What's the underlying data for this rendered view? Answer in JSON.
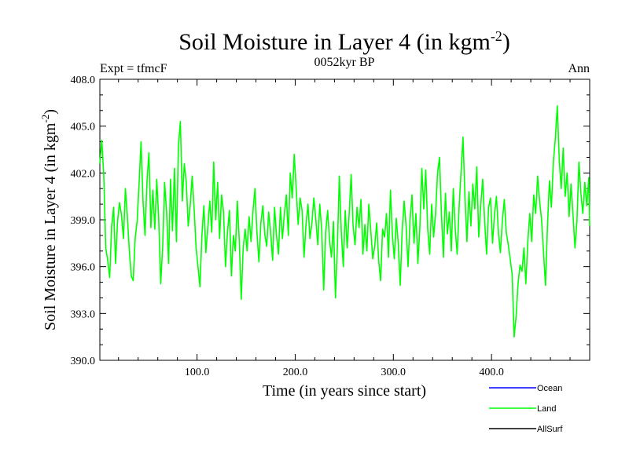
{
  "chart_data": {
    "type": "line",
    "title_main": "Soil Moisture in Layer 4 (in kgm",
    "title_sup": "-2",
    "title_close": ")",
    "subtitle": "0052kyr BP",
    "left_label": "Expt = tfmcF",
    "right_label": "Ann",
    "xlabel": "Time (in years since start)",
    "ylabel_main": "Soil Moisture in Layer 4 (in kgm",
    "ylabel_sup": "-2",
    "ylabel_close": ")",
    "xlim": [
      1,
      500
    ],
    "ylim": [
      390.0,
      408.0
    ],
    "x_ticks": [
      {
        "value": 100,
        "label": "100.0"
      },
      {
        "value": 200,
        "label": "200.0"
      },
      {
        "value": 300,
        "label": "300.0"
      },
      {
        "value": 400,
        "label": "400.0"
      }
    ],
    "y_ticks": [
      {
        "value": 390,
        "label": "390.0"
      },
      {
        "value": 393,
        "label": "393.0"
      },
      {
        "value": 396,
        "label": "396.0"
      },
      {
        "value": 399,
        "label": "399.0"
      },
      {
        "value": 402,
        "label": "402.0"
      },
      {
        "value": 405,
        "label": "405.0"
      },
      {
        "value": 408,
        "label": "408.0"
      }
    ],
    "legend": [
      {
        "name": "Ocean",
        "color": "#0000ff"
      },
      {
        "name": "Land",
        "color": "#00ff00"
      },
      {
        "name": "AllSurf",
        "color": "#000000"
      }
    ],
    "series": [
      {
        "name": "Land",
        "color": "#00ff00",
        "points": [
          [
            1,
            402.6
          ],
          [
            3,
            404.1
          ],
          [
            5,
            401.8
          ],
          [
            7,
            397.2
          ],
          [
            9,
            396.4
          ],
          [
            11,
            395.3
          ],
          [
            13,
            398.6
          ],
          [
            15,
            399.8
          ],
          [
            17,
            396.2
          ],
          [
            19,
            398.9
          ],
          [
            21,
            400.1
          ],
          [
            23,
            399.3
          ],
          [
            25,
            397.8
          ],
          [
            27,
            401.0
          ],
          [
            29,
            399.2
          ],
          [
            31,
            397.0
          ],
          [
            33,
            395.4
          ],
          [
            35,
            395.1
          ],
          [
            37,
            397.8
          ],
          [
            39,
            398.9
          ],
          [
            41,
            401.3
          ],
          [
            43,
            404.0
          ],
          [
            45,
            400.2
          ],
          [
            47,
            398.0
          ],
          [
            49,
            401.4
          ],
          [
            51,
            403.3
          ],
          [
            53,
            398.5
          ],
          [
            55,
            400.9
          ],
          [
            57,
            398.4
          ],
          [
            59,
            401.6
          ],
          [
            61,
            399.0
          ],
          [
            63,
            394.9
          ],
          [
            65,
            397.3
          ],
          [
            67,
            401.4
          ],
          [
            69,
            399.5
          ],
          [
            71,
            396.2
          ],
          [
            73,
            401.6
          ],
          [
            75,
            398.3
          ],
          [
            77,
            402.3
          ],
          [
            79,
            397.6
          ],
          [
            81,
            403.7
          ],
          [
            83,
            405.3
          ],
          [
            85,
            400.2
          ],
          [
            87,
            402.6
          ],
          [
            89,
            401.4
          ],
          [
            91,
            398.6
          ],
          [
            93,
            399.9
          ],
          [
            95,
            401.8
          ],
          [
            97,
            399.7
          ],
          [
            99,
            397.2
          ],
          [
            101,
            396.0
          ],
          [
            103,
            394.7
          ],
          [
            105,
            398.0
          ],
          [
            107,
            399.9
          ],
          [
            109,
            396.9
          ],
          [
            111,
            398.5
          ],
          [
            113,
            400.2
          ],
          [
            115,
            398.2
          ],
          [
            117,
            402.7
          ],
          [
            119,
            399.0
          ],
          [
            121,
            401.4
          ],
          [
            123,
            397.8
          ],
          [
            125,
            400.6
          ],
          [
            127,
            399.5
          ],
          [
            129,
            396.0
          ],
          [
            131,
            398.2
          ],
          [
            133,
            399.6
          ],
          [
            135,
            395.4
          ],
          [
            137,
            398.0
          ],
          [
            139,
            397.0
          ],
          [
            141,
            400.2
          ],
          [
            143,
            397.7
          ],
          [
            145,
            393.9
          ],
          [
            147,
            397.2
          ],
          [
            149,
            398.4
          ],
          [
            151,
            397.0
          ],
          [
            153,
            399.2
          ],
          [
            155,
            397.6
          ],
          [
            157,
            399.6
          ],
          [
            159,
            401.0
          ],
          [
            161,
            398.2
          ],
          [
            163,
            396.3
          ],
          [
            165,
            398.8
          ],
          [
            167,
            399.9
          ],
          [
            169,
            398.1
          ],
          [
            171,
            397.3
          ],
          [
            173,
            399.5
          ],
          [
            175,
            398.2
          ],
          [
            177,
            396.4
          ],
          [
            179,
            399.8
          ],
          [
            181,
            398.0
          ],
          [
            183,
            396.8
          ],
          [
            185,
            399.8
          ],
          [
            187,
            397.8
          ],
          [
            189,
            399.4
          ],
          [
            191,
            400.6
          ],
          [
            193,
            398.0
          ],
          [
            195,
            402.0
          ],
          [
            197,
            400.4
          ],
          [
            199,
            403.2
          ],
          [
            201,
            401.0
          ],
          [
            203,
            398.7
          ],
          [
            205,
            400.4
          ],
          [
            207,
            399.6
          ],
          [
            209,
            396.6
          ],
          [
            211,
            398.7
          ],
          [
            213,
            400.0
          ],
          [
            215,
            397.8
          ],
          [
            217,
            398.8
          ],
          [
            219,
            400.4
          ],
          [
            221,
            399.0
          ],
          [
            223,
            397.4
          ],
          [
            225,
            400.0
          ],
          [
            227,
            398.3
          ],
          [
            229,
            394.5
          ],
          [
            231,
            398.2
          ],
          [
            233,
            399.6
          ],
          [
            235,
            397.7
          ],
          [
            237,
            396.6
          ],
          [
            239,
            398.9
          ],
          [
            241,
            394.0
          ],
          [
            243,
            397.3
          ],
          [
            245,
            401.8
          ],
          [
            247,
            398.2
          ],
          [
            249,
            396.0
          ],
          [
            251,
            399.6
          ],
          [
            253,
            397.2
          ],
          [
            255,
            399.4
          ],
          [
            257,
            401.9
          ],
          [
            259,
            398.6
          ],
          [
            261,
            397.4
          ],
          [
            263,
            399.8
          ],
          [
            265,
            398.5
          ],
          [
            267,
            400.3
          ],
          [
            269,
            396.8
          ],
          [
            271,
            398.7
          ],
          [
            273,
            397.0
          ],
          [
            275,
            400.0
          ],
          [
            277,
            398.3
          ],
          [
            279,
            396.5
          ],
          [
            281,
            397.3
          ],
          [
            283,
            398.8
          ],
          [
            285,
            396.4
          ],
          [
            287,
            395.1
          ],
          [
            289,
            398.4
          ],
          [
            291,
            397.9
          ],
          [
            293,
            399.4
          ],
          [
            295,
            396.6
          ],
          [
            297,
            400.9
          ],
          [
            299,
            398.0
          ],
          [
            301,
            396.5
          ],
          [
            303,
            399.1
          ],
          [
            305,
            397.5
          ],
          [
            307,
            394.8
          ],
          [
            309,
            398.3
          ],
          [
            311,
            400.2
          ],
          [
            313,
            398.6
          ],
          [
            315,
            396.0
          ],
          [
            317,
            399.0
          ],
          [
            319,
            400.6
          ],
          [
            321,
            397.5
          ],
          [
            323,
            399.4
          ],
          [
            325,
            396.2
          ],
          [
            327,
            398.5
          ],
          [
            329,
            402.3
          ],
          [
            331,
            399.7
          ],
          [
            333,
            402.2
          ],
          [
            335,
            398.4
          ],
          [
            337,
            396.8
          ],
          [
            339,
            400.0
          ],
          [
            341,
            397.9
          ],
          [
            343,
            399.4
          ],
          [
            345,
            402.0
          ],
          [
            347,
            403.0
          ],
          [
            349,
            399.3
          ],
          [
            351,
            396.6
          ],
          [
            353,
            400.7
          ],
          [
            355,
            398.1
          ],
          [
            357,
            399.5
          ],
          [
            359,
            397.0
          ],
          [
            361,
            401.0
          ],
          [
            363,
            398.4
          ],
          [
            365,
            396.8
          ],
          [
            367,
            399.8
          ],
          [
            369,
            402.1
          ],
          [
            371,
            404.3
          ],
          [
            373,
            400.4
          ],
          [
            375,
            397.6
          ],
          [
            377,
            400.8
          ],
          [
            379,
            398.6
          ],
          [
            381,
            401.3
          ],
          [
            383,
            399.7
          ],
          [
            385,
            402.4
          ],
          [
            387,
            397.9
          ],
          [
            389,
            399.9
          ],
          [
            391,
            401.6
          ],
          [
            393,
            398.9
          ],
          [
            395,
            396.8
          ],
          [
            397,
            399.8
          ],
          [
            399,
            400.4
          ],
          [
            401,
            397.5
          ],
          [
            403,
            399.3
          ],
          [
            405,
            400.5
          ],
          [
            407,
            398.2
          ],
          [
            409,
            396.9
          ],
          [
            411,
            398.9
          ],
          [
            413,
            400.3
          ],
          [
            415,
            398.2
          ],
          [
            417,
            397.4
          ],
          [
            419,
            396.5
          ],
          [
            421,
            395.5
          ],
          [
            423,
            391.5
          ],
          [
            425,
            392.8
          ],
          [
            427,
            394.9
          ],
          [
            429,
            396.1
          ],
          [
            431,
            395.7
          ],
          [
            433,
            397.2
          ],
          [
            435,
            394.9
          ],
          [
            437,
            397.6
          ],
          [
            439,
            399.4
          ],
          [
            441,
            397.6
          ],
          [
            443,
            400.6
          ],
          [
            445,
            399.4
          ],
          [
            447,
            401.8
          ],
          [
            449,
            400.2
          ],
          [
            451,
            399.0
          ],
          [
            453,
            396.9
          ],
          [
            455,
            394.8
          ],
          [
            457,
            398.6
          ],
          [
            459,
            401.5
          ],
          [
            461,
            399.8
          ],
          [
            463,
            402.7
          ],
          [
            465,
            404.2
          ],
          [
            467,
            406.3
          ],
          [
            469,
            402.8
          ],
          [
            471,
            401.0
          ],
          [
            473,
            403.6
          ],
          [
            475,
            400.5
          ],
          [
            477,
            402.0
          ],
          [
            479,
            399.2
          ],
          [
            481,
            401.3
          ],
          [
            483,
            399.3
          ],
          [
            485,
            397.2
          ],
          [
            487,
            398.9
          ],
          [
            489,
            402.7
          ],
          [
            491,
            400.7
          ],
          [
            493,
            399.4
          ],
          [
            495,
            401.4
          ],
          [
            497,
            399.9
          ],
          [
            499,
            401.7
          ],
          [
            500,
            398.6
          ]
        ]
      }
    ]
  }
}
